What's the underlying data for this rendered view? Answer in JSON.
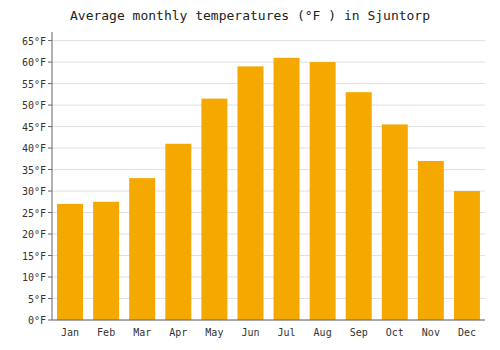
{
  "chart_data": {
    "type": "bar",
    "title": "Average monthly temperatures (°F ) in Sjuntorp",
    "categories": [
      "Jan",
      "Feb",
      "Mar",
      "Apr",
      "May",
      "Jun",
      "Jul",
      "Aug",
      "Sep",
      "Oct",
      "Nov",
      "Dec"
    ],
    "values": [
      27,
      27.5,
      33,
      41,
      51.5,
      59,
      61,
      60,
      53,
      45.5,
      37,
      30
    ],
    "color": "#F5A800",
    "ylim": [
      0,
      67
    ],
    "yticks": [
      {
        "value": 0,
        "label": "0°F"
      },
      {
        "value": 5,
        "label": "5°F"
      },
      {
        "value": 10,
        "label": "10°F"
      },
      {
        "value": 15,
        "label": "15°F"
      },
      {
        "value": 20,
        "label": "20°F"
      },
      {
        "value": 25,
        "label": "25°F"
      },
      {
        "value": 30,
        "label": "30°F"
      },
      {
        "value": 35,
        "label": "35°F"
      },
      {
        "value": 40,
        "label": "40°F"
      },
      {
        "value": 45,
        "label": "45°F"
      },
      {
        "value": 50,
        "label": "50°F"
      },
      {
        "value": 55,
        "label": "55°F"
      },
      {
        "value": 60,
        "label": "60°F"
      },
      {
        "value": 65,
        "label": "65°F"
      }
    ],
    "grid": true
  }
}
